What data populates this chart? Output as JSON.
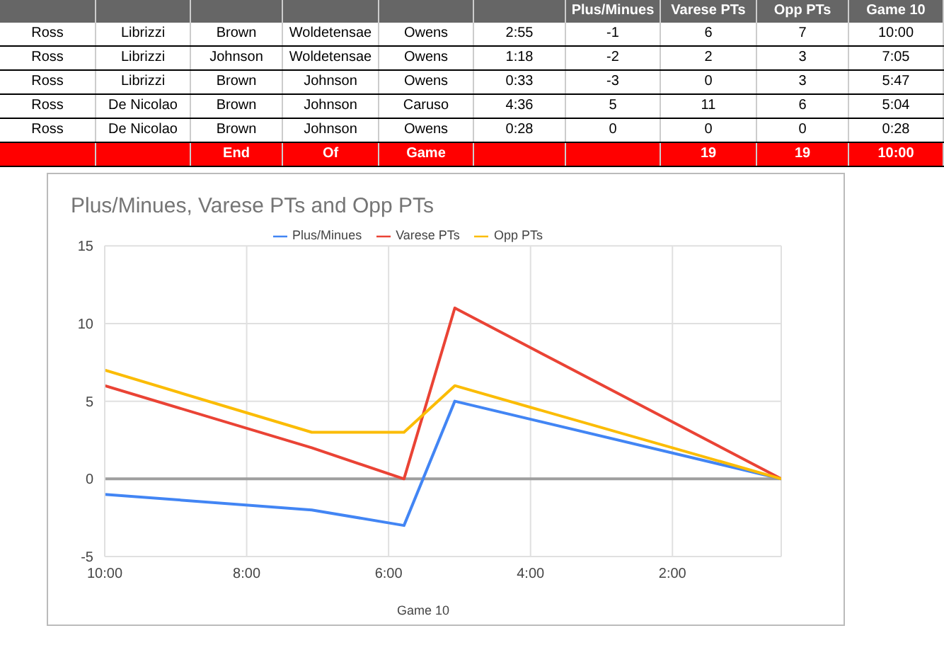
{
  "chart_data": [
    {
      "type": "other",
      "categories": [
        null,
        null,
        null,
        null,
        null,
        null,
        "Plus/Minues",
        "Varese PTs",
        "Opp PTs",
        "Game 10"
      ],
      "cell_labels": [
        [
          "Ross",
          "Librizzi",
          "Brown",
          "Woldetensae",
          "Owens",
          "2:55",
          "-1",
          "6",
          "7",
          "10:00"
        ],
        [
          "Ross",
          "Librizzi",
          "Johnson",
          "Woldetensae",
          "Owens",
          "1:18",
          "-2",
          "2",
          "3",
          "7:05"
        ],
        [
          "Ross",
          "Librizzi",
          "Brown",
          "Johnson",
          "Owens",
          "0:33",
          "-3",
          "0",
          "3",
          "5:47"
        ],
        [
          "Ross",
          "De Nicolao",
          "Brown",
          "Johnson",
          "Caruso",
          "4:36",
          "5",
          "11",
          "6",
          "5:04"
        ],
        [
          "Ross",
          "De Nicolao",
          "Brown",
          "Johnson",
          "Owens",
          "0:28",
          "0",
          "0",
          "0",
          "0:28"
        ],
        [
          null,
          null,
          "End",
          "Of",
          "Game",
          null,
          null,
          "19",
          "19",
          "10:00"
        ]
      ]
    },
    {
      "type": "line",
      "title": "Plus/Minues, Varese PTs and Opp PTs",
      "xlabel": "Game 10",
      "x": [
        10,
        7.083,
        5.783,
        5.067,
        0.467
      ],
      "series": [
        {
          "name": "Plus/Minues",
          "color": "#4285f4",
          "values": [
            -1,
            -2,
            -3,
            5,
            0
          ]
        },
        {
          "name": "Varese PTs",
          "color": "#ea4335",
          "values": [
            6,
            2,
            0,
            11,
            0
          ]
        },
        {
          "name": "Opp PTs",
          "color": "#fbbc04",
          "values": [
            7,
            3,
            3,
            6,
            0
          ]
        }
      ],
      "xlim": [
        10,
        0.467
      ],
      "xticks": [
        {
          "value": 10,
          "label": "10:00"
        },
        {
          "value": 8,
          "label": "8:00"
        },
        {
          "value": 6,
          "label": "6:00"
        },
        {
          "value": 4,
          "label": "4:00"
        },
        {
          "value": 2,
          "label": "2:00"
        }
      ],
      "ylim": [
        -5,
        15
      ],
      "yticks": [
        -5,
        0,
        5,
        10,
        15
      ],
      "ref_lines": [
        {
          "axis": "y",
          "value": 0,
          "color": "#9e9e9e"
        }
      ],
      "grid": true,
      "legend": "top",
      "marker": "none",
      "line_style": "solid"
    }
  ]
}
